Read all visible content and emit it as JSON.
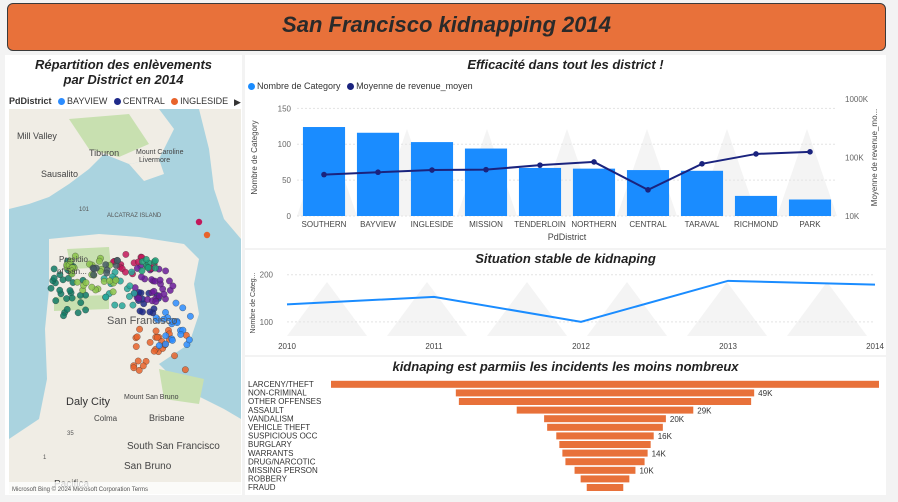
{
  "header": {
    "title": "San Francisco kidnapping 2014"
  },
  "map_panel": {
    "title_line1": "Répartition des enlèvements",
    "title_line2": "par District en 2014",
    "legend_label": "PdDistrict",
    "legend_items": [
      {
        "label": "BAYVIEW",
        "color": "#2b8cff"
      },
      {
        "label": "CENTRAL",
        "color": "#1f2a8a"
      },
      {
        "label": "INGLESIDE",
        "color": "#e8632b"
      }
    ],
    "map_labels": {
      "tiburon": "Tiburon",
      "mill_valley": "Mill Valley",
      "sausalito": "Sausalito",
      "mount_caroline": "Mount Caroline",
      "livermore": "Livermore",
      "alcatraz": "ALCATRAZ ISLAND",
      "presidio": "Presidio",
      "of_sf": "of San...",
      "san_francisco": "San Francisco",
      "daly_city": "Daly City",
      "colma": "Colma",
      "brisbane": "Brisbane",
      "mount_san_bruno": "Mount San Bruno",
      "south_sf": "South San Francisco",
      "san_bruno": "San Bruno",
      "pacifica": "Pacifica",
      "hwy_101": "101",
      "hwy_35": "35",
      "hwy_1": "1"
    },
    "attribution": "Microsoft Bing  © 2024 Microsoft Corporation  Terms",
    "colors": {
      "water": "#aad3df",
      "land": "#f0ede5",
      "park": "#c8e0b0"
    }
  },
  "chart_data": [
    {
      "type": "bar",
      "title": "Efficacité dans tout les district !",
      "xlabel": "PdDistrict",
      "ylabel": "Nombre de Category",
      "y2label": "Moyenne de revenue_mo...",
      "legend": [
        "Nombre de Category",
        "Moyenne de revenue_moyen"
      ],
      "colors": {
        "bar": "#1a8cff",
        "line": "#1a237e"
      },
      "categories": [
        "SOUTHERN",
        "BAYVIEW",
        "INGLESIDE",
        "MISSION",
        "TENDERLOIN",
        "NORTHERN",
        "CENTRAL",
        "TARAVAL",
        "RICHMOND",
        "PARK"
      ],
      "yticks": [
        "0",
        "50",
        "100",
        "150"
      ],
      "ylim": [
        0,
        150
      ],
      "y2ticks": [
        "10K",
        "100K",
        "1000K"
      ],
      "y2_scale": "log",
      "series": [
        {
          "name": "Nombre de Category",
          "values": [
            124,
            116,
            103,
            94,
            67,
            66,
            64,
            63,
            28,
            23
          ]
        },
        {
          "name": "Moyenne de revenue_moyen",
          "values": [
            51000,
            56000,
            61000,
            62000,
            74000,
            84000,
            28000,
            78000,
            115000,
            125000
          ]
        }
      ]
    },
    {
      "type": "line",
      "title": "Situation stable de kidnaping",
      "ylabel": "Nombre de Categ...",
      "x": [
        2010,
        2011,
        2012,
        2013,
        2014
      ],
      "xticks": [
        "2010",
        "2011",
        "2012",
        "2013",
        "2014"
      ],
      "yticks": [
        "100",
        "200"
      ],
      "ylim": [
        70,
        210
      ],
      "color": "#1a8cff",
      "series": [
        {
          "values": [
            137,
            153,
            100,
            187,
            179
          ]
        }
      ]
    },
    {
      "type": "bar",
      "orientation": "funnel",
      "title": "kidnaping est parmiis les incidents les moins nombreux",
      "color": "#e8713a",
      "categories": [
        "LARCENY/THEFT",
        "NON-CRIMINAL",
        "OTHER OFFENSES",
        "ASSAULT",
        "VANDALISM",
        "VEHICLE THEFT",
        "SUSPICIOUS OCC",
        "BURGLARY",
        "WARRANTS",
        "DRUG/NARCOTIC",
        "MISSING PERSON",
        "ROBBERY",
        "FRAUD"
      ],
      "values": [
        90000,
        49000,
        48000,
        29000,
        20000,
        19000,
        16000,
        15000,
        14000,
        13000,
        10000,
        8000,
        6000
      ],
      "data_labels": [
        "",
        "49K",
        "",
        "29K",
        "20K",
        "",
        "16K",
        "",
        "14K",
        "",
        "10K",
        "",
        ""
      ]
    }
  ]
}
